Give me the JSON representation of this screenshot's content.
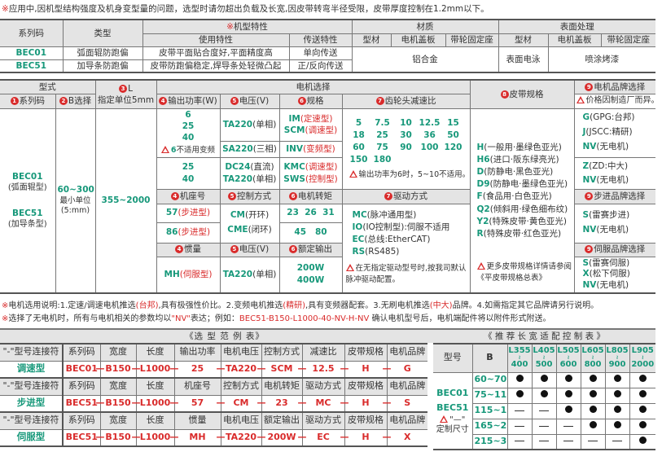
{
  "top_note": {
    "mark": "※",
    "text": "应用中,因机型结构强度及机身变型量的问题，选型时请勿超出负载及长宽,因皮带转弯半径受限，皮带厚度控制在1.2mm以下。"
  },
  "spec_table": {
    "h_series": "系列码",
    "h_type": "类型",
    "h_model_mark": "※",
    "h_model": "机型特性",
    "h_use": "使用特性",
    "h_transfer": "传送特性",
    "h_material": "材质",
    "h_surface": "表面处理",
    "h_profile": "型材",
    "h_cover": "电机盖板",
    "h_seat": "带轮固定座",
    "h_profile2": "型材",
    "h_cover2": "电机盖板",
    "h_seat2": "带轮固定座",
    "rows": [
      {
        "series": "BEC01",
        "type": "弧面辊防跑偏",
        "use": "皮带平面贴合度好,平面精度高",
        "transfer": "单向传送"
      },
      {
        "series": "BEC51",
        "type": "加导条防跑偏",
        "use": "皮带防跑偏稳定,焊导条处轻微凸起",
        "transfer": "正/反向传送"
      }
    ],
    "material": "铝合金",
    "surface_profile": "表面电泳",
    "surface_other": "喷涂烤漆"
  },
  "selection": {
    "h_form": "型式",
    "h_L_num": "3",
    "h_L": "L",
    "h_L_sub": "指定单位5mm",
    "h_motor": "电机选择",
    "h_belt_num": "8",
    "h_belt": "皮带规格",
    "h_brand_num": "9",
    "h_brand": "电机品牌选择",
    "h_series_num": "1",
    "h_series": "系列码",
    "h_b_num": "2",
    "h_b": "B选择",
    "h_power_num": "4",
    "h_power": "输出功率(W)",
    "h_volt_num": "5",
    "h_volt": "电压(V)",
    "h_spec_num": "6",
    "h_spec": "规格",
    "h_gear_num": "7",
    "h_gear": "齿轮头减速比",
    "h_brand_note": "价格因制造厂而异。",
    "series": [
      {
        "code": "BEC01",
        "desc": "(弧面辊型)"
      },
      {
        "code": "BEC51",
        "desc": "(加导条型)"
      }
    ],
    "b_range": "60~300",
    "b_unit1": "最小单位",
    "b_unit2": "(5:mm)",
    "l_range": "355~2000",
    "power_a": [
      "6",
      "25",
      "40"
    ],
    "power_note_num": "6",
    "power_note": "不适用变频",
    "power_b": [
      "25",
      "40"
    ],
    "volt_ta": {
      "code": "TA220",
      "desc": "(单相)"
    },
    "volt_sa": {
      "code": "SA220",
      "desc": "(三相)"
    },
    "volt_dc": {
      "code": "DC24",
      "desc": "(直流)"
    },
    "volt_ta2": {
      "code": "TA220",
      "desc": "(单相)"
    },
    "spec_im": {
      "code": "IM",
      "desc": "(定速型)"
    },
    "spec_scm": {
      "code": "SCM",
      "desc": "(调速型)"
    },
    "spec_inv": {
      "code": "INV",
      "desc": "(变频型)"
    },
    "spec_kmc": {
      "code": "KMC",
      "desc": "(调速型)"
    },
    "spec_sws": {
      "code": "SWS",
      "desc": "(控制型)"
    },
    "ratios": [
      "5",
      "7.5",
      "10",
      "12.5",
      "15",
      "18",
      "25",
      "30",
      "36",
      "50",
      "60",
      "75",
      "90",
      "100",
      "120",
      "150",
      "180",
      "",
      "",
      ""
    ],
    "ratio_note": "输出功率为6时，5~10不适用。",
    "brand_ac": [
      {
        "code": "G",
        "desc": "(GPG:台邦)"
      },
      {
        "code": "J",
        "desc": "(JSCC:精研)"
      },
      {
        "code": "NV",
        "desc": "(无电机)"
      }
    ],
    "brand_dc": [
      {
        "code": "Z",
        "desc": "(ZD:中大)"
      },
      {
        "code": "NV",
        "desc": "(无电机)"
      }
    ],
    "h_frame_num": "4",
    "h_frame": "机座号",
    "h_ctrl_num": "5",
    "h_ctrl": "控制方式",
    "h_torque_num": "6",
    "h_torque": "电机转矩",
    "h_drive_num": "7",
    "h_drive": "驱动方式",
    "h_step_brand_num": "9",
    "h_step_brand": "步进品牌选择",
    "frame_57": {
      "code": "57",
      "desc": "(步进型)"
    },
    "frame_86": {
      "code": "86",
      "desc": "(步进型)"
    },
    "ctrl_cm": {
      "code": "CM",
      "desc": "(开环)"
    },
    "ctrl_cme": {
      "code": "CME",
      "desc": "(闭环)"
    },
    "torque_a": "23  26  31",
    "torque_b": "45   80",
    "drive": [
      {
        "code": "MC",
        "desc": "(脉冲通用型)"
      },
      {
        "code": "IO",
        "desc": "(IO控制型):伺服不适用"
      },
      {
        "code": "EC",
        "desc": "(总线:EtherCAT)"
      },
      {
        "code": "RS",
        "desc": "(RS485)"
      }
    ],
    "drive_note": "在无指定驱动型号时,按我司默认脉冲驱动配置。",
    "step_brand": [
      {
        "code": "S",
        "desc": "(雷赛步进)"
      },
      {
        "code": "NV",
        "desc": "(无电机)"
      }
    ],
    "h_inertia_num": "4",
    "h_inertia": "惯量",
    "h_volt2_num": "5",
    "h_volt2": "电压(V)",
    "h_rated_num": "6",
    "h_rated": "额定输出",
    "h_servo_brand_num": "9",
    "h_servo_brand": "伺服品牌选择",
    "inertia": {
      "code": "MH",
      "desc": "(伺服型)"
    },
    "servo_volt": {
      "code": "TA220",
      "desc": "(单相)"
    },
    "rated": [
      "200W",
      "400W"
    ],
    "servo_brand": [
      {
        "code": "S",
        "desc": "(雷赛伺服)"
      },
      {
        "code": "X",
        "desc": "(松下伺服)"
      },
      {
        "code": "NV",
        "desc": "(无电机)"
      }
    ],
    "belts": [
      {
        "code": "H",
        "desc": "(一般用·墨绿色亚光)"
      },
      {
        "code": "H6",
        "desc": "(进口·阪东绿亮光)"
      },
      {
        "code": "D",
        "desc": "(防静电·黑色亚光)"
      },
      {
        "code": "D9",
        "desc": "(防静电·墨绿色亚光)"
      },
      {
        "code": "F",
        "desc": "(食品用·白色亚光)"
      },
      {
        "code": "Q2",
        "desc": "(倾斜用·绿色细布纹)"
      },
      {
        "code": "Y2",
        "desc": "(特殊皮带·黄色亚光)"
      },
      {
        "code": "R",
        "desc": "(特殊皮带·红色亚光)"
      }
    ],
    "belt_note": "更多皮带规格详情请参阅《平皮带规格总表》"
  },
  "notes": {
    "line1": [
      {
        "t": "※",
        "c": "red"
      },
      {
        "t": "电机选用说明:1.定速/调速电机推选",
        "c": ""
      },
      {
        "t": "(台邦)",
        "c": "red"
      },
      {
        "t": ",具有极强性价比。2.变频电机推选",
        "c": ""
      },
      {
        "t": "(精研)",
        "c": "red"
      },
      {
        "t": ",具有变频器配套。3.无刷电机推选",
        "c": ""
      },
      {
        "t": "(中大)",
        "c": "red"
      },
      {
        "t": "品牌。4.如需指定其它品牌请另行说明。",
        "c": ""
      }
    ],
    "line2": [
      {
        "t": "※",
        "c": "red"
      },
      {
        "t": "选择了无电机时，所有与电机相关的参数均以",
        "c": ""
      },
      {
        "t": "\"NV\"",
        "c": "red"
      },
      {
        "t": "表达；例如：",
        "c": ""
      },
      {
        "t": "BEC51-B150-L1000-40-NV-H-NV",
        "c": "red"
      },
      {
        "t": "  确认电机型号后，电机端配件将以附件形式附送。",
        "c": ""
      }
    ]
  },
  "example_table": {
    "title": "《选 型 范 例 表》",
    "connector": "—",
    "blocks": [
      {
        "headers": [
          "\"-\"型号连接符",
          "系列码",
          "宽度",
          "长度",
          "输出功率",
          "电机电压",
          "控制方式",
          "减速比",
          "皮带规格",
          "电机品牌"
        ],
        "label": "调速型",
        "values": [
          "BEC01",
          "B150",
          "L1000",
          "25",
          "TA220",
          "SCM",
          "12.5",
          "H",
          "G"
        ]
      },
      {
        "headers": [
          "\"-\"型号连接符",
          "系列码",
          "宽度",
          "长度",
          "机座号",
          "控制方式",
          "电机转矩",
          "驱动方式",
          "皮带规格",
          "电机品牌"
        ],
        "label": "步进型",
        "values": [
          "BEC51",
          "B150",
          "L1000",
          "57",
          "CM",
          "23",
          "MC",
          "H",
          "S"
        ]
      },
      {
        "headers": [
          "\"-\"型号连接符",
          "系列码",
          "宽度",
          "长度",
          "惯量",
          "电机电压",
          "额定输出",
          "驱动方式",
          "皮带规格",
          "电机品牌"
        ],
        "label": "伺服型",
        "values": [
          "BEC51",
          "B150",
          "L1000",
          "MH",
          "TA220",
          "200W",
          "EC",
          "H",
          "X"
        ]
      }
    ]
  },
  "recommend_table": {
    "title": "《 推 荐 长 宽 适 配 控 制 表 》",
    "h_model": "型号",
    "h_b": "B",
    "l_ranges": [
      [
        "L355",
        "400"
      ],
      [
        "L405",
        "500"
      ],
      [
        "L505",
        "600"
      ],
      [
        "L605",
        "800"
      ],
      [
        "L805",
        "900"
      ],
      [
        "L905",
        "2000"
      ]
    ],
    "range_sep": "≀",
    "models": [
      "BEC01",
      "BEC51"
    ],
    "custom_note_mark": "\"—\"",
    "custom_note": "定制尺寸",
    "rows": [
      {
        "b": "60~70",
        "cells": [
          true,
          true,
          true,
          true,
          true,
          true
        ]
      },
      {
        "b": "75~110",
        "cells": [
          true,
          true,
          true,
          true,
          true,
          true
        ]
      },
      {
        "b": "115~160",
        "cells": [
          false,
          false,
          true,
          true,
          true,
          true
        ]
      },
      {
        "b": "165~210",
        "cells": [
          false,
          false,
          false,
          true,
          true,
          true
        ]
      },
      {
        "b": "215~300",
        "cells": [
          false,
          false,
          false,
          false,
          false,
          true
        ]
      }
    ]
  },
  "colors": {
    "accent_green": "#17987a",
    "accent_red": "#d92b2b",
    "header_gray": "#e4e4e4"
  }
}
